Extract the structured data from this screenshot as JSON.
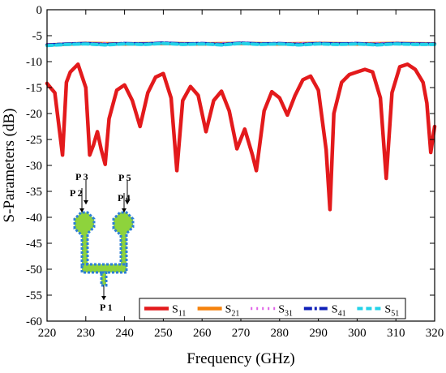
{
  "chart_data": {
    "type": "line",
    "xlabel": "Frequency (GHz)",
    "ylabel": "S-Parameters (dB)",
    "xlim": [
      220,
      320
    ],
    "ylim": [
      -60,
      0
    ],
    "xticks": [
      220,
      230,
      240,
      250,
      260,
      270,
      280,
      290,
      300,
      310,
      320
    ],
    "yticks": [
      0,
      -5,
      -10,
      -15,
      -20,
      -25,
      -30,
      -35,
      -40,
      -45,
      -50,
      -55,
      -60
    ],
    "grid": false,
    "legend_position": "bottom-right",
    "series": [
      {
        "name": "S11",
        "label_main": "S",
        "label_sub": "11",
        "color": "#e31a1c",
        "style": "solid",
        "x": [
          220,
          222,
          224,
          225,
          226,
          228,
          230,
          231,
          232,
          233,
          234,
          235,
          236,
          238,
          240,
          242,
          244,
          246,
          248,
          250,
          252,
          253.5,
          255,
          257,
          259,
          261,
          263,
          265,
          267,
          269,
          271,
          273,
          274,
          276,
          278,
          280,
          282,
          284,
          286,
          288,
          290,
          292,
          293,
          294,
          296,
          298,
          300,
          302,
          304,
          306,
          307.5,
          309,
          311,
          313,
          315,
          317,
          318,
          319,
          320
        ],
        "y": [
          -14.2,
          -16,
          -28,
          -14,
          -12,
          -10.5,
          -15,
          -28,
          -26,
          -23.5,
          -27,
          -29.8,
          -21,
          -15.5,
          -14.5,
          -17.5,
          -22.5,
          -16,
          -13,
          -12.3,
          -17,
          -31,
          -17.5,
          -14.8,
          -16.5,
          -23.5,
          -17.5,
          -15.7,
          -19.5,
          -26.8,
          -23,
          -28,
          -31,
          -19.5,
          -15.8,
          -17,
          -20.3,
          -16.5,
          -13.5,
          -12.8,
          -15.5,
          -27,
          -38.5,
          -20,
          -14,
          -12.5,
          -12,
          -11.5,
          -12,
          -17,
          -32.5,
          -16,
          -11,
          -10.5,
          -11.5,
          -14,
          -18,
          -27.5,
          -22.5
        ]
      },
      {
        "name": "S21",
        "label_main": "S",
        "label_sub": "21",
        "color": "#f5820d",
        "style": "solid",
        "x": [
          220,
          230,
          240,
          250,
          260,
          270,
          280,
          290,
          300,
          310,
          320
        ],
        "y": [
          -6.8,
          -6.5,
          -6.6,
          -6.5,
          -6.6,
          -6.5,
          -6.6,
          -6.5,
          -6.6,
          -6.5,
          -6.6
        ]
      },
      {
        "name": "S31",
        "label_main": "S",
        "label_sub": "31",
        "color": "#e060e8",
        "style": "dotted",
        "x": [
          220,
          230,
          240,
          250,
          260,
          270,
          280,
          290,
          300,
          310,
          320
        ],
        "y": [
          -6.7,
          -6.5,
          -6.6,
          -6.5,
          -6.6,
          -6.5,
          -6.6,
          -6.5,
          -6.6,
          -6.5,
          -6.6
        ]
      },
      {
        "name": "S41",
        "label_main": "S",
        "label_sub": "41",
        "color": "#0f20b8",
        "style": "dashdot",
        "x": [
          220,
          225,
          230,
          235,
          240,
          245,
          250,
          255,
          260,
          265,
          270,
          275,
          280,
          285,
          290,
          295,
          300,
          305,
          310,
          315,
          320
        ],
        "y": [
          -6.8,
          -6.6,
          -6.5,
          -6.7,
          -6.5,
          -6.6,
          -6.4,
          -6.6,
          -6.5,
          -6.7,
          -6.4,
          -6.6,
          -6.5,
          -6.7,
          -6.5,
          -6.6,
          -6.5,
          -6.7,
          -6.5,
          -6.6,
          -6.6
        ]
      },
      {
        "name": "S51",
        "label_main": "S",
        "label_sub": "51",
        "color": "#22d2e8",
        "style": "dashed",
        "x": [
          220,
          225,
          230,
          235,
          240,
          245,
          250,
          255,
          260,
          265,
          270,
          275,
          280,
          285,
          290,
          295,
          300,
          305,
          310,
          315,
          320
        ],
        "y": [
          -6.9,
          -6.7,
          -6.6,
          -6.8,
          -6.6,
          -6.7,
          -6.5,
          -6.7,
          -6.6,
          -6.8,
          -6.5,
          -6.7,
          -6.6,
          -6.8,
          -6.6,
          -6.7,
          -6.6,
          -6.8,
          -6.6,
          -6.7,
          -6.7
        ]
      }
    ],
    "inset_ports": [
      "P 1",
      "P 2",
      "P 3",
      "P 4",
      "P 5"
    ]
  }
}
